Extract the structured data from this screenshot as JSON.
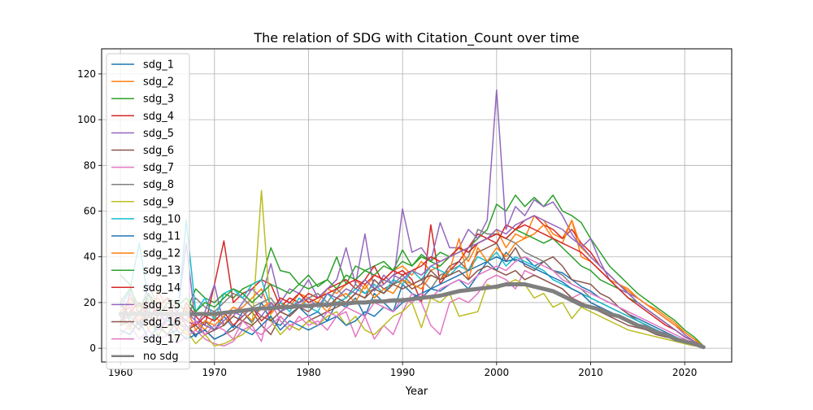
{
  "chart_data": {
    "type": "line",
    "title": "The relation of SDG with Citation_Count over time",
    "xlabel": "Year",
    "ylabel": "",
    "xlim": [
      1958,
      2025
    ],
    "ylim": [
      -6,
      131
    ],
    "xticks": [
      1960,
      1970,
      1980,
      1990,
      2000,
      2010,
      2020
    ],
    "yticks": [
      0,
      20,
      40,
      60,
      80,
      100,
      120
    ],
    "grid": true,
    "legend_position": "top-left",
    "x": [
      1960,
      1961,
      1962,
      1963,
      1964,
      1965,
      1966,
      1967,
      1968,
      1969,
      1970,
      1971,
      1972,
      1973,
      1974,
      1975,
      1976,
      1977,
      1978,
      1979,
      1980,
      1981,
      1982,
      1983,
      1984,
      1985,
      1986,
      1987,
      1988,
      1989,
      1990,
      1991,
      1992,
      1993,
      1994,
      1995,
      1996,
      1997,
      1998,
      1999,
      2000,
      2001,
      2002,
      2003,
      2004,
      2005,
      2006,
      2007,
      2008,
      2009,
      2010,
      2011,
      2012,
      2013,
      2014,
      2015,
      2016,
      2017,
      2018,
      2019,
      2020,
      2021,
      2022
    ],
    "series": [
      {
        "name": "sdg_1",
        "color": "#1f77b4",
        "values": [
          20,
          12,
          8,
          18,
          5,
          14,
          3,
          10,
          5,
          12,
          8,
          14,
          9,
          16,
          11,
          20,
          12,
          10,
          15,
          18,
          14,
          16,
          12,
          20,
          18,
          22,
          14,
          24,
          20,
          16,
          28,
          24,
          22,
          26,
          25,
          28,
          30,
          26,
          32,
          38,
          34,
          42,
          38,
          40,
          36,
          38,
          34,
          33,
          30,
          27,
          25,
          22,
          20,
          18,
          15,
          13,
          11,
          9,
          7,
          5,
          3,
          2,
          1
        ]
      },
      {
        "name": "sdg_2",
        "color": "#ff7f0e",
        "values": [
          10,
          22,
          16,
          8,
          25,
          18,
          10,
          6,
          12,
          8,
          14,
          10,
          16,
          18,
          22,
          26,
          15,
          20,
          18,
          24,
          22,
          20,
          26,
          24,
          28,
          30,
          26,
          32,
          30,
          34,
          36,
          32,
          38,
          34,
          36,
          40,
          44,
          38,
          46,
          48,
          52,
          44,
          50,
          48,
          58,
          56,
          50,
          48,
          56,
          40,
          38,
          34,
          30,
          28,
          25,
          22,
          19,
          17,
          14,
          11,
          7,
          4,
          1
        ]
      },
      {
        "name": "sdg_3",
        "color": "#2ca02c",
        "values": [
          32,
          28,
          14,
          24,
          18,
          22,
          20,
          16,
          26,
          22,
          20,
          24,
          22,
          26,
          28,
          30,
          44,
          34,
          33,
          28,
          32,
          27,
          30,
          40,
          28,
          36,
          34,
          36,
          38,
          34,
          43,
          36,
          41,
          38,
          36,
          40,
          42,
          44,
          48,
          52,
          63,
          60,
          67,
          62,
          66,
          62,
          67,
          60,
          58,
          55,
          48,
          42,
          36,
          32,
          28,
          24,
          21,
          18,
          15,
          12,
          8,
          5,
          1
        ]
      },
      {
        "name": "sdg_4",
        "color": "#d62728",
        "values": [
          15,
          18,
          10,
          24,
          12,
          16,
          8,
          20,
          14,
          10,
          28,
          47,
          20,
          24,
          26,
          30,
          28,
          18,
          22,
          20,
          24,
          22,
          26,
          28,
          30,
          26,
          30,
          36,
          28,
          32,
          34,
          30,
          20,
          54,
          28,
          34,
          38,
          44,
          50,
          48,
          46,
          54,
          52,
          56,
          58,
          54,
          52,
          48,
          52,
          46,
          42,
          36,
          32,
          28,
          24,
          20,
          17,
          14,
          11,
          8,
          5,
          3,
          1
        ]
      },
      {
        "name": "sdg_5",
        "color": "#9467bd",
        "values": [
          10,
          24,
          15,
          28,
          18,
          22,
          12,
          46,
          10,
          16,
          28,
          10,
          14,
          20,
          26,
          22,
          37,
          20,
          26,
          24,
          30,
          22,
          26,
          30,
          44,
          28,
          50,
          25,
          32,
          28,
          61,
          42,
          44,
          38,
          55,
          44,
          44,
          52,
          48,
          56,
          113,
          52,
          62,
          58,
          65,
          62,
          64,
          58,
          50,
          44,
          48,
          38,
          30,
          26,
          24,
          22,
          19,
          16,
          13,
          10,
          6,
          3,
          1
        ]
      },
      {
        "name": "sdg_6",
        "color": "#8c564b",
        "values": [
          20,
          14,
          10,
          16,
          8,
          12,
          16,
          10,
          6,
          8,
          4,
          6,
          8,
          12,
          16,
          10,
          6,
          14,
          10,
          8,
          12,
          14,
          16,
          18,
          20,
          24,
          22,
          30,
          26,
          28,
          30,
          26,
          28,
          34,
          30,
          36,
          38,
          34,
          42,
          44,
          46,
          38,
          44,
          36,
          34,
          38,
          40,
          36,
          30,
          29,
          28,
          24,
          22,
          18,
          15,
          12,
          10,
          8,
          6,
          4,
          3,
          2,
          1
        ]
      },
      {
        "name": "sdg_7",
        "color": "#e377c2",
        "values": [
          6,
          10,
          4,
          8,
          3,
          6,
          2,
          5,
          8,
          4,
          2,
          1,
          3,
          8,
          10,
          3,
          20,
          12,
          8,
          14,
          10,
          12,
          8,
          14,
          16,
          5,
          14,
          4,
          10,
          6,
          16,
          24,
          20,
          10,
          6,
          20,
          22,
          20,
          24,
          30,
          32,
          30,
          26,
          34,
          32,
          30,
          28,
          26,
          22,
          24,
          20,
          18,
          16,
          14,
          12,
          10,
          8,
          6,
          5,
          4,
          3,
          2,
          1
        ]
      },
      {
        "name": "sdg_8",
        "color": "#7f7f7f",
        "values": [
          12,
          14,
          10,
          20,
          16,
          18,
          14,
          12,
          22,
          18,
          16,
          20,
          24,
          22,
          18,
          20,
          22,
          16,
          20,
          18,
          22,
          24,
          20,
          26,
          22,
          28,
          24,
          26,
          30,
          28,
          32,
          28,
          30,
          26,
          32,
          34,
          36,
          40,
          52,
          50,
          50,
          48,
          46,
          42,
          40,
          38,
          34,
          32,
          28,
          26,
          22,
          20,
          18,
          16,
          14,
          12,
          10,
          8,
          6,
          5,
          3,
          2,
          1
        ]
      },
      {
        "name": "sdg_9",
        "color": "#bcbd22",
        "values": [
          14,
          8,
          20,
          12,
          6,
          10,
          4,
          8,
          2,
          6,
          1,
          2,
          4,
          6,
          10,
          69,
          12,
          6,
          10,
          8,
          12,
          10,
          14,
          16,
          10,
          14,
          8,
          6,
          10,
          14,
          16,
          20,
          9,
          22,
          20,
          24,
          14,
          15,
          16,
          28,
          26,
          28,
          30,
          28,
          22,
          24,
          18,
          20,
          13,
          18,
          16,
          14,
          12,
          10,
          8,
          7,
          6,
          5,
          4,
          3,
          2,
          1,
          1
        ]
      },
      {
        "name": "sdg_10",
        "color": "#17becf",
        "values": [
          18,
          25,
          46,
          20,
          15,
          12,
          10,
          56,
          16,
          22,
          12,
          24,
          26,
          22,
          28,
          30,
          18,
          20,
          16,
          22,
          18,
          16,
          24,
          20,
          22,
          26,
          24,
          28,
          24,
          30,
          28,
          34,
          30,
          36,
          34,
          32,
          36,
          34,
          40,
          38,
          42,
          36,
          40,
          38,
          36,
          34,
          30,
          28,
          26,
          24,
          22,
          20,
          18,
          16,
          14,
          12,
          10,
          8,
          6,
          5,
          3,
          2,
          1
        ]
      },
      {
        "name": "sdg_11",
        "color": "#1f77b4",
        "values": [
          8,
          6,
          12,
          4,
          10,
          6,
          8,
          4,
          6,
          8,
          4,
          6,
          10,
          8,
          6,
          10,
          14,
          8,
          12,
          10,
          8,
          10,
          12,
          14,
          10,
          12,
          16,
          14,
          18,
          16,
          20,
          22,
          24,
          26,
          28,
          30,
          32,
          34,
          36,
          38,
          40,
          38,
          39,
          37,
          35,
          33,
          31,
          29,
          26,
          24,
          20,
          18,
          16,
          14,
          12,
          10,
          8,
          6,
          5,
          4,
          3,
          2,
          1
        ]
      },
      {
        "name": "sdg_12",
        "color": "#ff7f0e",
        "values": [
          16,
          20,
          12,
          18,
          22,
          14,
          10,
          18,
          8,
          12,
          10,
          14,
          18,
          16,
          12,
          18,
          20,
          16,
          14,
          18,
          22,
          20,
          16,
          22,
          24,
          20,
          28,
          22,
          26,
          24,
          30,
          28,
          26,
          32,
          30,
          34,
          48,
          30,
          44,
          38,
          44,
          40,
          46,
          48,
          50,
          54,
          48,
          46,
          56,
          44,
          40,
          36,
          32,
          28,
          26,
          22,
          19,
          16,
          13,
          10,
          7,
          4,
          1
        ]
      },
      {
        "name": "sdg_13",
        "color": "#2ca02c",
        "values": [
          20,
          26,
          18,
          24,
          14,
          20,
          18,
          22,
          16,
          20,
          18,
          22,
          26,
          24,
          20,
          24,
          28,
          26,
          24,
          28,
          26,
          28,
          30,
          26,
          32,
          30,
          34,
          32,
          36,
          34,
          38,
          36,
          40,
          38,
          42,
          40,
          44,
          42,
          46,
          48,
          50,
          48,
          52,
          50,
          48,
          46,
          48,
          44,
          40,
          36,
          34,
          30,
          28,
          26,
          22,
          20,
          17,
          14,
          11,
          8,
          5,
          3,
          1
        ]
      },
      {
        "name": "sdg_14",
        "color": "#d62728",
        "values": [
          12,
          16,
          20,
          14,
          18,
          22,
          16,
          12,
          10,
          14,
          12,
          16,
          10,
          14,
          18,
          12,
          16,
          22,
          20,
          24,
          20,
          22,
          24,
          26,
          28,
          30,
          28,
          32,
          30,
          34,
          32,
          34,
          36,
          40,
          38,
          40,
          44,
          42,
          46,
          48,
          50,
          48,
          52,
          54,
          52,
          50,
          48,
          46,
          44,
          42,
          38,
          34,
          30,
          26,
          22,
          19,
          16,
          13,
          10,
          8,
          5,
          3,
          1
        ]
      },
      {
        "name": "sdg_15",
        "color": "#9467bd",
        "values": [
          14,
          10,
          16,
          12,
          8,
          14,
          10,
          16,
          12,
          10,
          8,
          12,
          16,
          14,
          18,
          14,
          20,
          16,
          18,
          20,
          22,
          18,
          24,
          22,
          26,
          24,
          30,
          26,
          28,
          32,
          30,
          34,
          32,
          36,
          38,
          40,
          42,
          44,
          46,
          48,
          52,
          50,
          54,
          56,
          58,
          56,
          54,
          52,
          48,
          45,
          40,
          36,
          32,
          28,
          24,
          20,
          17,
          14,
          11,
          8,
          5,
          3,
          1
        ]
      },
      {
        "name": "sdg_16",
        "color": "#8c564b",
        "values": [
          10,
          12,
          8,
          14,
          10,
          6,
          12,
          8,
          10,
          6,
          8,
          10,
          14,
          12,
          10,
          14,
          12,
          16,
          14,
          18,
          16,
          20,
          18,
          22,
          20,
          24,
          22,
          26,
          24,
          28,
          26,
          28,
          30,
          32,
          30,
          32,
          34,
          30,
          34,
          36,
          34,
          32,
          34,
          30,
          32,
          30,
          28,
          26,
          22,
          20,
          18,
          16,
          14,
          12,
          10,
          9,
          8,
          6,
          5,
          4,
          3,
          2,
          1
        ]
      },
      {
        "name": "sdg_17",
        "color": "#e377c2",
        "values": [
          22,
          18,
          14,
          20,
          16,
          10,
          14,
          8,
          12,
          6,
          10,
          8,
          4,
          12,
          8,
          6,
          10,
          14,
          10,
          12,
          14,
          10,
          16,
          14,
          18,
          16,
          14,
          20,
          18,
          16,
          22,
          20,
          24,
          22,
          26,
          28,
          30,
          28,
          32,
          34,
          36,
          34,
          38,
          40,
          38,
          36,
          34,
          30,
          28,
          26,
          24,
          22,
          20,
          18,
          16,
          14,
          12,
          10,
          8,
          6,
          4,
          2,
          1
        ]
      },
      {
        "name": "no sdg",
        "color": "#7f7f7f",
        "thick": true,
        "values": [
          15,
          15,
          15,
          15,
          15,
          15,
          15,
          15,
          15,
          15,
          15,
          15.5,
          16,
          16.5,
          17,
          17.5,
          17.5,
          18,
          18,
          18.5,
          18.5,
          19,
          19,
          19.5,
          19.5,
          20,
          20,
          20.5,
          20.5,
          21,
          21,
          21.5,
          22,
          22.5,
          23,
          24,
          25,
          25.5,
          26,
          26.5,
          27,
          28,
          28,
          28,
          27,
          26,
          25,
          23,
          21,
          19,
          18,
          17,
          15,
          14,
          12,
          10,
          9,
          7,
          6,
          4,
          3,
          2,
          0.5
        ]
      }
    ]
  }
}
